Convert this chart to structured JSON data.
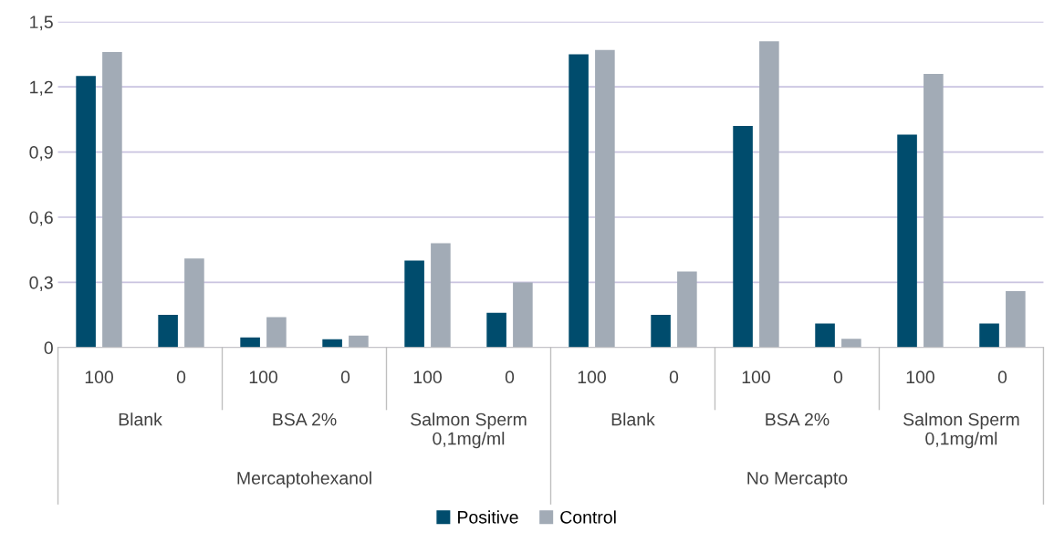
{
  "chart_data": {
    "type": "bar",
    "categories": [
      "100",
      "0",
      "100",
      "0",
      "100",
      "0",
      "100",
      "0",
      "100",
      "0",
      "100",
      "0"
    ],
    "series": [
      {
        "name": "Positive",
        "color": "#004c6d",
        "values": [
          1.25,
          0.15,
          0.046,
          0.038,
          0.4,
          0.16,
          1.35,
          0.15,
          1.02,
          0.11,
          0.98,
          0.11
        ]
      },
      {
        "name": "Control",
        "color": "#a2abb6",
        "values": [
          1.36,
          0.41,
          0.14,
          0.055,
          0.48,
          0.3,
          1.37,
          0.35,
          1.41,
          0.04,
          1.26,
          0.26
        ]
      }
    ],
    "annotations": [
      "Blank",
      "BSA 2%",
      "Salmon Sperm\n0,1mg/ml",
      "Blank",
      "BSA 2%",
      "Salmon Sperm\n0,1mg/ml",
      "Mercaptohexanol",
      "No Mercapto"
    ],
    "ylim": [
      0,
      1.5
    ],
    "yticks": [
      {
        "value": 0,
        "label": "0"
      },
      {
        "value": 0.3,
        "label": "0,3"
      },
      {
        "value": 0.6,
        "label": "0,6"
      },
      {
        "value": 0.9,
        "label": "0,9"
      },
      {
        "value": 1.2,
        "label": "1,2"
      },
      {
        "value": 1.5,
        "label": "1,5"
      }
    ],
    "grid": "y",
    "legend": "bottom"
  }
}
